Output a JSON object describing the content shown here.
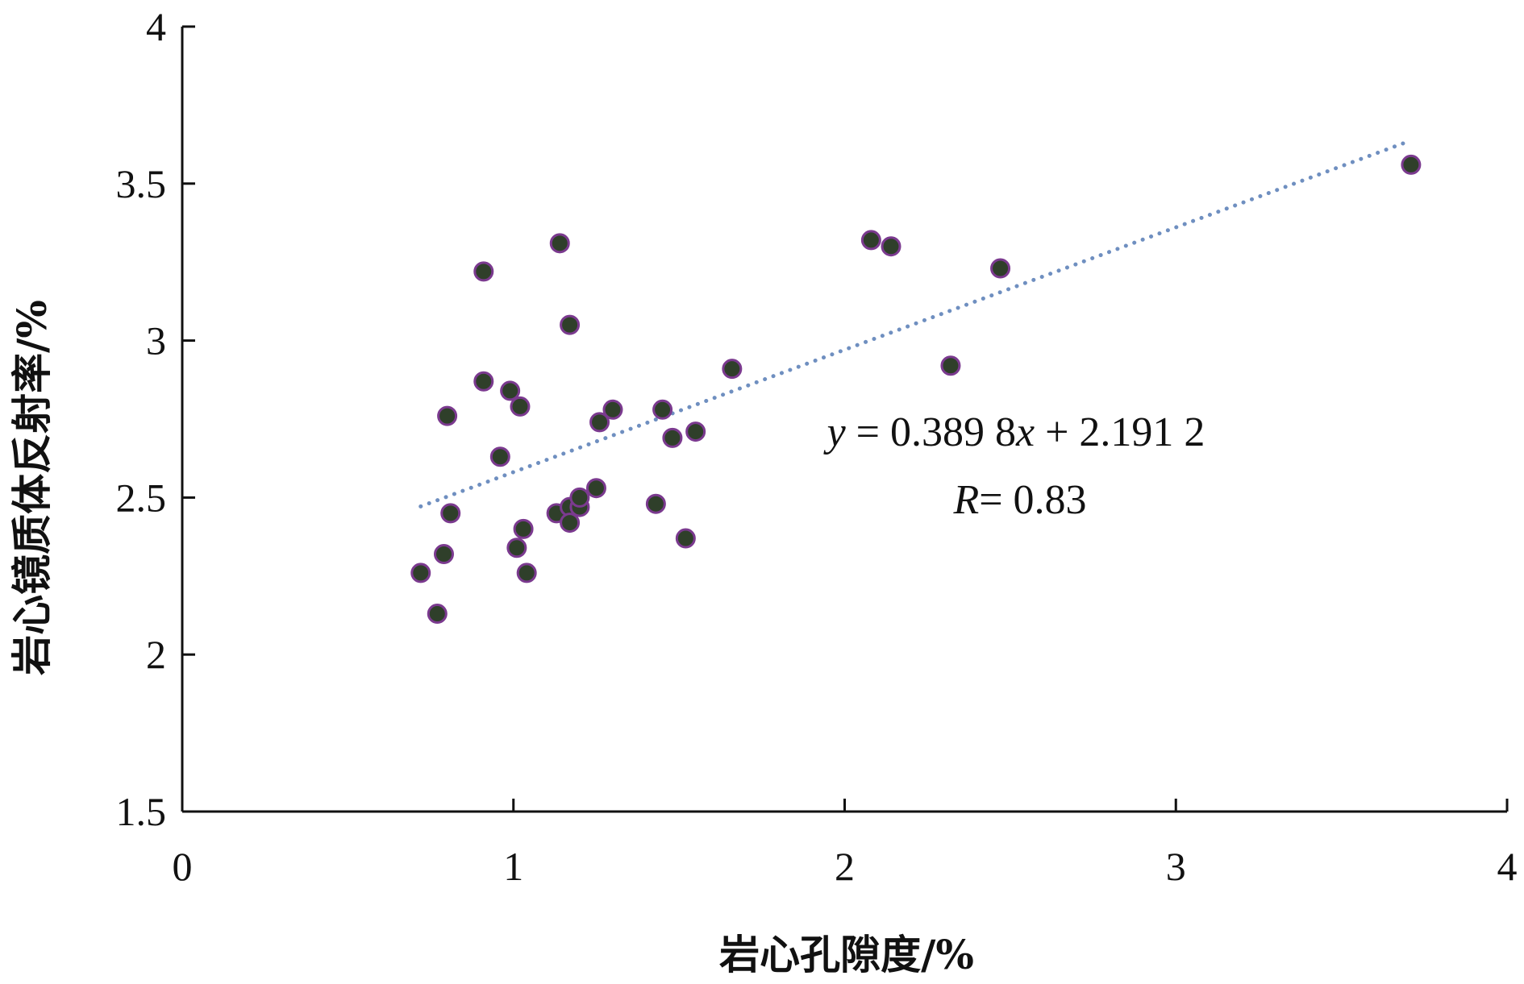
{
  "chart_data": {
    "type": "scatter",
    "xlabel": "岩心孔隙度/%",
    "ylabel": "岩心镜质体反射率/%",
    "xlim": [
      0,
      4
    ],
    "ylim": [
      1.5,
      4
    ],
    "x_ticks": [
      "0",
      "1",
      "2",
      "3",
      "4"
    ],
    "y_ticks": [
      "1.5",
      "2",
      "2.5",
      "3",
      "3.5",
      "4"
    ],
    "grid": false,
    "marker_fill": "#2f3f2a",
    "marker_edge": "#7b3a8f",
    "trendline_color": "#6f8fc0",
    "points": [
      {
        "x": 0.72,
        "y": 2.26
      },
      {
        "x": 0.77,
        "y": 2.13
      },
      {
        "x": 0.79,
        "y": 2.32
      },
      {
        "x": 0.8,
        "y": 2.76
      },
      {
        "x": 0.81,
        "y": 2.45
      },
      {
        "x": 0.91,
        "y": 3.22
      },
      {
        "x": 0.91,
        "y": 2.87
      },
      {
        "x": 0.96,
        "y": 2.63
      },
      {
        "x": 0.99,
        "y": 2.84
      },
      {
        "x": 1.01,
        "y": 2.34
      },
      {
        "x": 1.02,
        "y": 2.79
      },
      {
        "x": 1.03,
        "y": 2.4
      },
      {
        "x": 1.04,
        "y": 2.26
      },
      {
        "x": 1.13,
        "y": 2.45
      },
      {
        "x": 1.14,
        "y": 3.31
      },
      {
        "x": 1.17,
        "y": 3.05
      },
      {
        "x": 1.17,
        "y": 2.47
      },
      {
        "x": 1.17,
        "y": 2.42
      },
      {
        "x": 1.2,
        "y": 2.47
      },
      {
        "x": 1.2,
        "y": 2.5
      },
      {
        "x": 1.25,
        "y": 2.53
      },
      {
        "x": 1.26,
        "y": 2.74
      },
      {
        "x": 1.3,
        "y": 2.78
      },
      {
        "x": 1.43,
        "y": 2.48
      },
      {
        "x": 1.45,
        "y": 2.78
      },
      {
        "x": 1.48,
        "y": 2.69
      },
      {
        "x": 1.52,
        "y": 2.37
      },
      {
        "x": 1.55,
        "y": 2.71
      },
      {
        "x": 1.66,
        "y": 2.91
      },
      {
        "x": 2.08,
        "y": 3.32
      },
      {
        "x": 2.14,
        "y": 3.3
      },
      {
        "x": 2.32,
        "y": 2.92
      },
      {
        "x": 2.47,
        "y": 3.23
      },
      {
        "x": 3.71,
        "y": 3.56
      }
    ],
    "trendline": {
      "style": "dotted",
      "slope": 0.3898,
      "intercept": 2.1912,
      "x_range": [
        0.72,
        3.71
      ]
    },
    "annotations": {
      "equation_y": "y",
      "equation_mid": " = 0.389 8",
      "equation_x": "x",
      "equation_tail": " + 2.191 2",
      "r_symbol": "R",
      "r_value": "= 0.83"
    }
  }
}
